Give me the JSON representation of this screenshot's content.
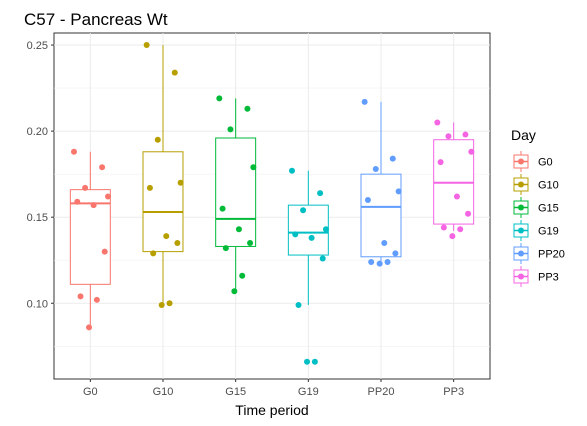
{
  "chart_data": {
    "type": "boxplot",
    "title": "C57 - Pancreas Wt",
    "xlabel": "Time period",
    "ylabel": "",
    "ylim": [
      0.056,
      0.257
    ],
    "y_ticks": [
      "0.10",
      "0.15",
      "0.20",
      "0.25"
    ],
    "y_tick_values": [
      0.1,
      0.15,
      0.2,
      0.25
    ],
    "grid": true,
    "legend": {
      "title": "Day",
      "position": "right"
    },
    "categories": [
      "G0",
      "G10",
      "G15",
      "G19",
      "PP20",
      "PP3"
    ],
    "series": [
      {
        "name": "G0",
        "color": "#F8766D",
        "box": {
          "lower_whisker": 0.086,
          "q1": 0.111,
          "median": 0.158,
          "q3": 0.166,
          "upper_whisker": 0.188
        },
        "points": [
          0.188,
          0.179,
          0.167,
          0.162,
          0.159,
          0.157,
          0.13,
          0.104,
          0.102,
          0.086
        ]
      },
      {
        "name": "G10",
        "color": "#B79F00",
        "box": {
          "lower_whisker": 0.1,
          "q1": 0.13,
          "median": 0.153,
          "q3": 0.188,
          "upper_whisker": 0.25
        },
        "points": [
          0.25,
          0.234,
          0.195,
          0.17,
          0.167,
          0.139,
          0.135,
          0.129,
          0.1,
          0.099
        ]
      },
      {
        "name": "G15",
        "color": "#00BA38",
        "box": {
          "lower_whisker": 0.107,
          "q1": 0.133,
          "median": 0.149,
          "q3": 0.196,
          "upper_whisker": 0.219
        },
        "points": [
          0.219,
          0.213,
          0.201,
          0.179,
          0.155,
          0.143,
          0.135,
          0.132,
          0.116,
          0.107
        ]
      },
      {
        "name": "G19",
        "color": "#00BFC4",
        "box": {
          "lower_whisker": 0.099,
          "q1": 0.128,
          "median": 0.141,
          "q3": 0.157,
          "upper_whisker": 0.177
        },
        "points": [
          0.177,
          0.164,
          0.154,
          0.143,
          0.14,
          0.138,
          0.126,
          0.099,
          0.066,
          0.066
        ]
      },
      {
        "name": "PP20",
        "color": "#619CFF",
        "box": {
          "lower_whisker": 0.124,
          "q1": 0.127,
          "median": 0.156,
          "q3": 0.175,
          "upper_whisker": 0.217
        },
        "points": [
          0.217,
          0.184,
          0.178,
          0.165,
          0.16,
          0.135,
          0.129,
          0.124,
          0.124,
          0.123
        ]
      },
      {
        "name": "PP3",
        "color": "#F564E3",
        "box": {
          "lower_whisker": 0.142,
          "q1": 0.146,
          "median": 0.17,
          "q3": 0.195,
          "upper_whisker": 0.205
        },
        "points": [
          0.205,
          0.198,
          0.197,
          0.188,
          0.182,
          0.162,
          0.152,
          0.144,
          0.143,
          0.139
        ]
      }
    ]
  }
}
